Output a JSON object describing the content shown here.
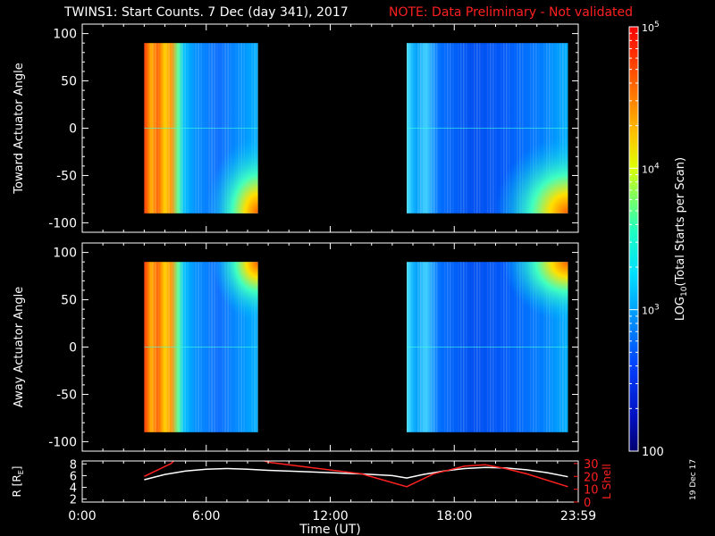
{
  "header": {
    "title": "TWINS1: Start Counts.  7 Dec (day 341), 2017",
    "note": "NOTE: Data Preliminary - Not validated",
    "side_date": "19 Dec 17"
  },
  "colors": {
    "background": "#000000",
    "axis": "#ffffff",
    "note_red": "#ff2020",
    "orbit_r_line": "#ffffff",
    "orbit_lshell_line": "#ff2020"
  },
  "chart_data": [
    {
      "type": "heatmap",
      "name": "toward-actuator-panel",
      "ylabel": "Toward Actuator Angle",
      "ylim": [
        -110,
        110
      ],
      "yticks": [
        100,
        50,
        0,
        -50,
        -100
      ],
      "xlim": [
        0,
        24
      ],
      "data_blocks": [
        {
          "t_start": 3.0,
          "t_end": 8.5,
          "angle_min": -90,
          "angle_max": 90
        },
        {
          "t_start": 15.7,
          "t_end": 23.5,
          "angle_min": -90,
          "angle_max": 90
        }
      ]
    },
    {
      "type": "heatmap",
      "name": "away-actuator-panel",
      "ylabel": "Away Actuator Angle",
      "ylim": [
        -110,
        110
      ],
      "yticks": [
        100,
        50,
        0,
        -50,
        -100
      ],
      "xlim": [
        0,
        24
      ],
      "data_blocks": [
        {
          "t_start": 3.0,
          "t_end": 8.5,
          "angle_min": -90,
          "angle_max": 90
        },
        {
          "t_start": 15.7,
          "t_end": 23.5,
          "angle_min": -90,
          "angle_max": 90
        }
      ]
    },
    {
      "type": "line",
      "name": "orbit-panel",
      "ylabel_left": "R [R",
      "ylabel_left_sub": "E",
      "ylabel_left_close": "]",
      "ylabel_right": "L Shell",
      "ylim_left": [
        1.5,
        8.5
      ],
      "yticks_left": [
        8,
        6,
        4,
        2
      ],
      "ylim_right": [
        0,
        32
      ],
      "yticks_right": [
        30,
        20,
        10,
        0
      ],
      "xlabel": "Time (UT)",
      "xlim": [
        0,
        24
      ],
      "xtick_labels": [
        "0:00",
        "6:00",
        "12:00",
        "18:00",
        "23:59"
      ],
      "xtick_values": [
        0,
        6,
        12,
        18,
        24
      ],
      "series": [
        {
          "axis": "left",
          "color": "#ffffff",
          "x": [
            3.0,
            4.0,
            5.0,
            6.0,
            7.0,
            8.0,
            9.0,
            10.5,
            12.0,
            13.5,
            15.0,
            15.7,
            16.5,
            17.5,
            18.5,
            19.5,
            20.5,
            21.5,
            22.5,
            23.5
          ],
          "y": [
            5.3,
            6.2,
            6.8,
            7.1,
            7.2,
            7.1,
            6.9,
            6.7,
            6.5,
            6.3,
            6.0,
            5.6,
            6.2,
            6.8,
            7.2,
            7.4,
            7.3,
            7.0,
            6.5,
            5.8
          ]
        },
        {
          "axis": "right",
          "color": "#ff2020",
          "x": [
            3.0,
            4.3,
            4.55
          ],
          "y": [
            20,
            30,
            34
          ]
        },
        {
          "axis": "right",
          "color": "#ff2020",
          "x": [
            8.4,
            9.0,
            11.0,
            13.5,
            15.7,
            17.0,
            18.5,
            19.5,
            20.5,
            21.5,
            23.5
          ],
          "y": [
            34,
            31,
            27,
            22,
            12,
            22,
            28,
            29,
            26,
            22,
            12
          ]
        }
      ]
    }
  ],
  "colorbar": {
    "label_prefix": "LOG",
    "label_sub": "10",
    "label_suffix": "(Total Starts per Scan)",
    "scale": "log",
    "min": 100,
    "max": 100000,
    "tick_labels": [
      {
        "value": 100000,
        "base": "10",
        "exp": "5"
      },
      {
        "value": 10000,
        "base": "10",
        "exp": "4"
      },
      {
        "value": 1000,
        "base": "10",
        "exp": "3"
      },
      {
        "value": 100,
        "text": "100"
      }
    ]
  }
}
